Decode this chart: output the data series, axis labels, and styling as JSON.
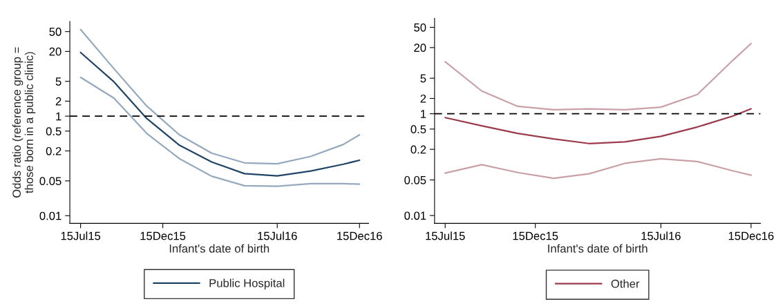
{
  "chart_data": [
    {
      "type": "line",
      "xlabel": "Infant's date of birth",
      "ylabel": "Odds ratio (reference group =\nthose born in a public clinic)",
      "log": "y",
      "grid": false,
      "legend": "bottom",
      "x": [
        "2015-07-15",
        "2015-09-15",
        "2015-11-15",
        "2016-01-15",
        "2016-03-15",
        "2016-05-15",
        "2016-07-15",
        "2016-09-15",
        "2016-11-15",
        "2016-12-15"
      ],
      "xlim": [
        "2015-06-25",
        "2017-01-01"
      ],
      "xticks": [
        {
          "value": "2015-07-15",
          "label": "15Jul15"
        },
        {
          "value": "2015-12-15",
          "label": "15Dec15"
        },
        {
          "value": "2016-07-15",
          "label": "15Jul16"
        },
        {
          "value": "2016-12-15",
          "label": "15Dec16"
        }
      ],
      "ylim": [
        0.007,
        80
      ],
      "yticks": [
        0.01,
        0.05,
        0.2,
        0.5,
        1,
        2,
        5,
        20,
        50
      ],
      "ref_lines": [
        {
          "axis": "y",
          "value": 1,
          "color": "#000000",
          "line_style": "dashed"
        }
      ],
      "series": [
        {
          "color": "#94a9bd",
          "values": [
            55,
            9,
            1.6,
            0.42,
            0.18,
            0.115,
            0.11,
            0.155,
            0.27,
            0.42
          ]
        },
        {
          "color": "#94a9bd",
          "values": [
            6,
            2.3,
            0.45,
            0.14,
            0.062,
            0.04,
            0.039,
            0.044,
            0.044,
            0.043
          ]
        },
        {
          "name": "Public Hospital",
          "color": "#1f4468",
          "values": [
            19,
            4.9,
            0.9,
            0.26,
            0.12,
            0.07,
            0.063,
            0.079,
            0.108,
            0.13
          ]
        }
      ]
    },
    {
      "type": "line",
      "xlabel": "Infant's date of birth",
      "log": "y",
      "grid": false,
      "legend": "bottom",
      "x": [
        "2015-07-15",
        "2015-09-15",
        "2015-11-15",
        "2016-01-15",
        "2016-03-15",
        "2016-05-15",
        "2016-07-15",
        "2016-09-15",
        "2016-11-15",
        "2016-12-15"
      ],
      "xlim": [
        "2015-06-27",
        "2016-12-31"
      ],
      "xticks": [
        {
          "value": "2015-07-15",
          "label": "15Jul15"
        },
        {
          "value": "2015-12-15",
          "label": "15Dec15"
        },
        {
          "value": "2016-07-15",
          "label": "15Jul16"
        },
        {
          "value": "2016-12-15",
          "label": "15Dec16"
        }
      ],
      "ylim": [
        0.007,
        75
      ],
      "yticks": [
        0.01,
        0.05,
        0.2,
        0.5,
        1,
        2,
        5,
        20,
        50
      ],
      "ref_lines": [
        {
          "axis": "y",
          "value": 1,
          "color": "#000000",
          "line_style": "dashed"
        }
      ],
      "series": [
        {
          "color": "#c9a0a6",
          "values": [
            10.5,
            2.8,
            1.4,
            1.2,
            1.25,
            1.2,
            1.35,
            2.4,
            11.5,
            24
          ]
        },
        {
          "color": "#c9a0a6",
          "values": [
            0.068,
            0.1,
            0.07,
            0.054,
            0.066,
            0.106,
            0.13,
            0.115,
            0.075,
            0.062
          ]
        },
        {
          "name": "Other",
          "color": "#9b3a4a",
          "values": [
            0.84,
            0.58,
            0.41,
            0.32,
            0.26,
            0.28,
            0.36,
            0.55,
            0.91,
            1.25
          ]
        }
      ]
    }
  ]
}
